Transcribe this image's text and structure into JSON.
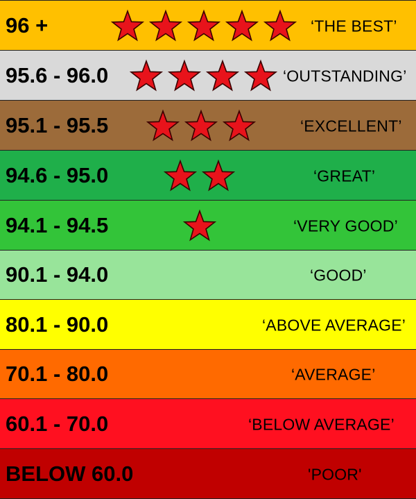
{
  "rows": [
    {
      "range": "96 +",
      "label": "‘THE BEST’",
      "stars": 5,
      "color": "#FFC000"
    },
    {
      "range": "95.6 - 96.0",
      "label": "‘OUTSTANDING’",
      "stars": 4,
      "color": "#D9D9D9"
    },
    {
      "range": "95.1 - 95.5",
      "label": "‘EXCELLENT’",
      "stars": 3,
      "color": "#9C6B3A"
    },
    {
      "range": "94.6 - 95.0",
      "label": "‘GREAT’",
      "stars": 2,
      "color": "#1FAF4A"
    },
    {
      "range": "94.1 - 94.5",
      "label": "‘VERY GOOD’",
      "stars": 1,
      "color": "#33C439"
    },
    {
      "range": "90.1 - 94.0",
      "label": "‘GOOD’",
      "stars": 0,
      "color": "#98E49A"
    },
    {
      "range": "80.1 - 90.0",
      "label": "‘ABOVE AVERAGE’",
      "stars": 0,
      "color": "#FFFF00"
    },
    {
      "range": "70.1 - 80.0",
      "label": "‘AVERAGE’",
      "stars": 0,
      "color": "#FF6A00"
    },
    {
      "range": "60.1 - 70.0",
      "label": "‘BELOW AVERAGE’",
      "stars": 0,
      "color": "#FF1020"
    },
    {
      "range": "BELOW 60.0",
      "label": "'POOR'",
      "stars": 0,
      "color": "#C00000"
    }
  ],
  "star_color": "#E8131B",
  "star_outline": "#3A0000"
}
